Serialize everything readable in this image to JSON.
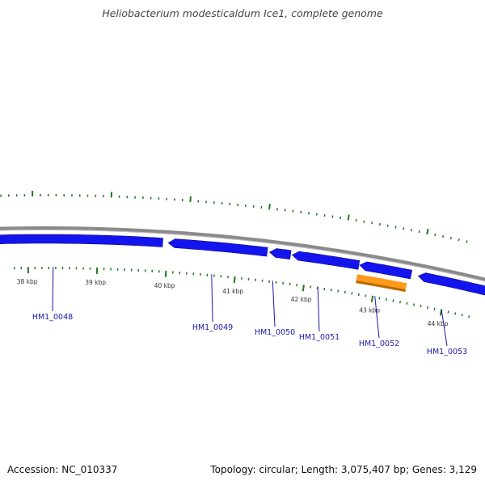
{
  "title": "Heliobacterium modesticaldum Ice1, complete genome",
  "footer": {
    "accession": "Accession: NC_010337",
    "summary": "Topology: circular; Length: 3,075,407 bp; Genes: 3,129"
  },
  "colors": {
    "backbone": "#8a8a8a",
    "gene": "#1414ee",
    "gene_dark": "#0a0a88",
    "highlight": "#ff9a1a",
    "highlight_dark": "#b86a00",
    "tick": "#1f7a1f",
    "label": "#1a1aa8"
  },
  "scale_labels": [
    "38 kbp",
    "39 kbp",
    "40 kbp",
    "41 kbp",
    "42 kbp",
    "43 kbp",
    "44 kbp"
  ],
  "genes": [
    {
      "label": "HM1_0048",
      "highlight": false
    },
    {
      "label": "HM1_0049",
      "highlight": false
    },
    {
      "label": "HM1_0050",
      "highlight": false
    },
    {
      "label": "HM1_0051",
      "highlight": false
    },
    {
      "label": "HM1_0052",
      "highlight": true
    },
    {
      "label": "HM1_0053",
      "highlight": false
    }
  ]
}
